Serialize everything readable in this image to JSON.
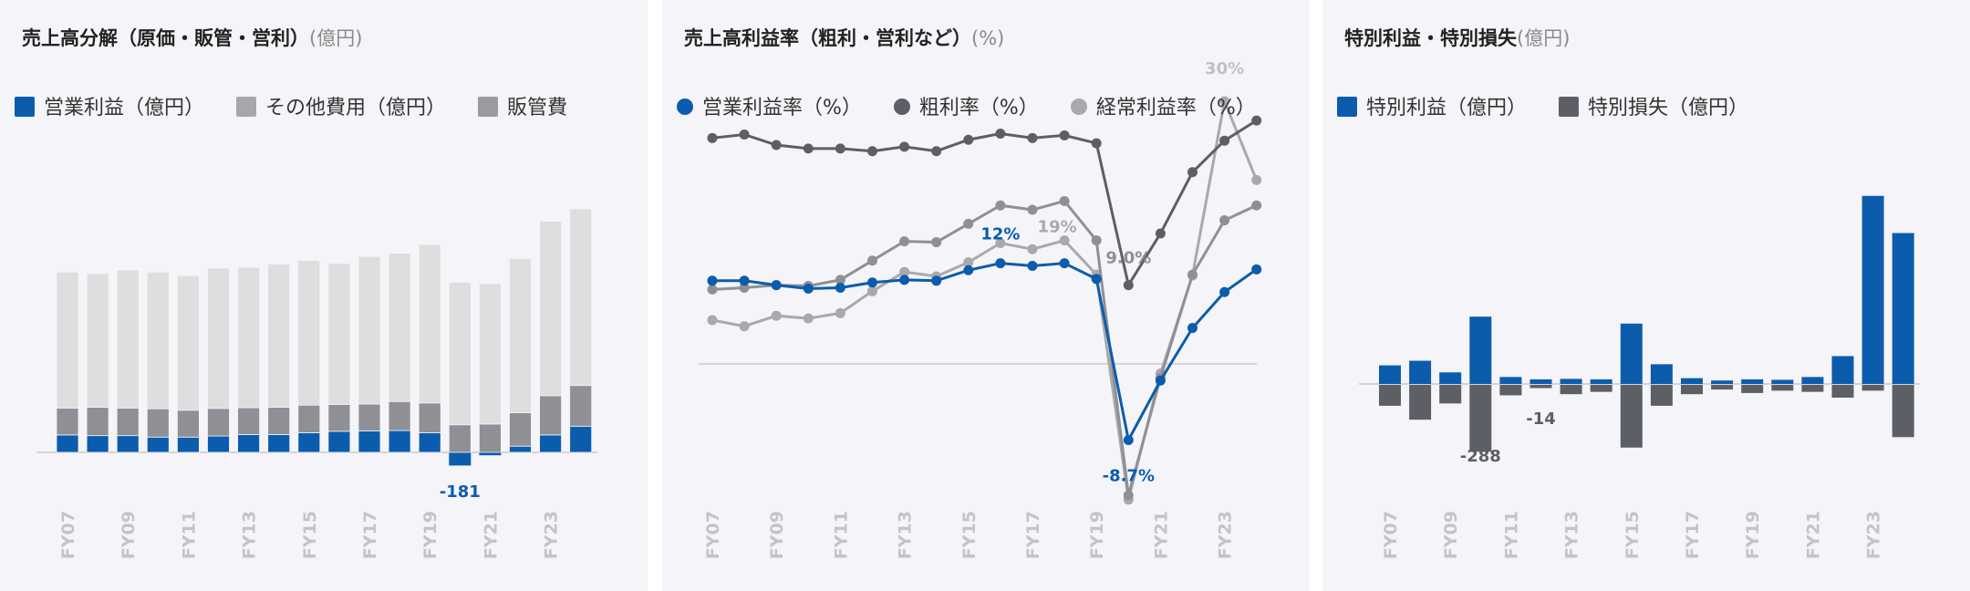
{
  "panels": [
    {
      "title": "売上高分解（原価・販管・営利）",
      "unit": "(億円)",
      "legend": [
        {
          "name": "営業利益（億円）",
          "color": "#0b5cad"
        },
        {
          "name": "その他費用（億円）",
          "color": "#a7a7a9"
        },
        {
          "name": "販管費",
          "color": "#9a9ba1"
        }
      ]
    },
    {
      "title": "売上高利益率（粗利・営利など）",
      "unit": "(%)",
      "legend": [
        {
          "name": "営業利益率（%）",
          "color": "#0b5cad"
        },
        {
          "name": "粗利率（%）",
          "color": "#5c5f66"
        },
        {
          "name": "経常利益率（%）",
          "color": "#a9a9ab"
        }
      ]
    },
    {
      "title": "特別利益・特別損失",
      "unit": "(億円)",
      "legend": [
        {
          "name": "特別利益（億円）",
          "color": "#0b5cad"
        },
        {
          "name": "特別損失（億円）",
          "color": "#5c5f66"
        }
      ]
    }
  ],
  "chart_data": [
    {
      "type": "bar",
      "stacked": true,
      "title": "売上高分解（原価・販管・営利）",
      "categories": [
        "FY07",
        "FY08",
        "FY09",
        "FY10",
        "FY11",
        "FY12",
        "FY13",
        "FY14",
        "FY15",
        "FY16",
        "FY17",
        "FY18",
        "FY19",
        "FY20",
        "FY21",
        "FY22",
        "FY23",
        "FY24"
      ],
      "tick_labels": [
        "FY07",
        "FY09",
        "FY11",
        "FY13",
        "FY15",
        "FY17",
        "FY19",
        "FY21",
        "FY23"
      ],
      "series": [
        {
          "name": "営業利益（億円）",
          "color": "#0b5cad",
          "values": [
            240,
            230,
            230,
            210,
            210,
            225,
            245,
            245,
            270,
            290,
            295,
            300,
            270,
            -181,
            -40,
            85,
            240,
            360
          ]
        },
        {
          "name": "販管費",
          "color": "#8f9096",
          "values": [
            370,
            390,
            380,
            390,
            370,
            380,
            370,
            375,
            380,
            370,
            370,
            400,
            410,
            380,
            390,
            460,
            540,
            560
          ]
        },
        {
          "name": "その他費用（億円）",
          "color": "#dededf",
          "values": [
            1870,
            1840,
            1900,
            1880,
            1850,
            1930,
            1930,
            1970,
            1990,
            1940,
            2030,
            2040,
            2180,
            1960,
            1930,
            2120,
            2400,
            2430
          ]
        }
      ],
      "annotations": [
        {
          "label": "-181",
          "category": "FY20"
        }
      ],
      "ylim": [
        -400,
        3600
      ]
    },
    {
      "type": "line",
      "title": "売上高利益率（粗利・営利など）",
      "categories": [
        "FY07",
        "FY08",
        "FY09",
        "FY10",
        "FY11",
        "FY12",
        "FY13",
        "FY14",
        "FY15",
        "FY16",
        "FY17",
        "FY18",
        "FY19",
        "FY20",
        "FY21",
        "FY22",
        "FY23",
        "FY24"
      ],
      "tick_labels": [
        "FY07",
        "FY09",
        "FY11",
        "FY13",
        "FY15",
        "FY17",
        "FY19",
        "FY21",
        "FY23"
      ],
      "series": [
        {
          "name": "粗利率（%）",
          "color": "#5c5f66",
          "values": [
            25.8,
            26.2,
            25.0,
            24.6,
            24.6,
            24.3,
            24.8,
            24.3,
            25.6,
            26.3,
            25.8,
            26.1,
            25.2,
            9.0,
            14.9,
            21.9,
            25.5,
            27.8
          ]
        },
        {
          "name": "営業利益率（%）",
          "color": "#0b5cad",
          "values": [
            9.5,
            9.5,
            9.0,
            8.6,
            8.7,
            9.3,
            9.6,
            9.5,
            10.7,
            11.5,
            11.2,
            11.5,
            9.7,
            -8.7,
            -1.9,
            4.1,
            8.2,
            10.8
          ]
        },
        {
          "name": "経常利益率（%）",
          "color": "#a9a9ab",
          "values": [
            5.0,
            4.3,
            5.5,
            5.2,
            5.8,
            8.3,
            10.5,
            10.0,
            11.6,
            13.8,
            13.1,
            14.1,
            10.2,
            -15.5,
            -1.1,
            10.1,
            30.0,
            21.0
          ]
        },
        {
          "name": "",
          "color": "#8f9096",
          "values": [
            8.5,
            8.7,
            9.0,
            8.9,
            9.6,
            11.8,
            14.0,
            13.9,
            16.0,
            18.1,
            17.6,
            18.6,
            14.1,
            -15.0,
            -1.6,
            10.2,
            16.4,
            18.1
          ]
        }
      ],
      "annotations": [
        {
          "label": "12%",
          "category": "FY16"
        },
        {
          "label": "19%",
          "category": "FY18"
        },
        {
          "label": "9.0%",
          "category": "FY20"
        },
        {
          "label": "-8.7%",
          "category": "FY20"
        },
        {
          "label": "30%",
          "category": "FY23"
        }
      ],
      "baseline": 0,
      "ylim": [
        -18,
        33
      ]
    },
    {
      "type": "bar",
      "title": "特別利益・特別損失",
      "categories": [
        "FY07",
        "FY08",
        "FY09",
        "FY10",
        "FY11",
        "FY12",
        "FY13",
        "FY14",
        "FY15",
        "FY16",
        "FY17",
        "FY18",
        "FY19",
        "FY20",
        "FY21",
        "FY22",
        "FY23",
        "FY24"
      ],
      "tick_labels": [
        "FY07",
        "FY09",
        "FY11",
        "FY13",
        "FY15",
        "FY17",
        "FY19",
        "FY21",
        "FY23"
      ],
      "series": [
        {
          "name": "特別利益（億円）",
          "color": "#0b5cad",
          "values": [
            80,
            100,
            50,
            290,
            30,
            20,
            22,
            20,
            260,
            85,
            25,
            15,
            20,
            18,
            30,
            120,
            810,
            650
          ]
        },
        {
          "name": "特別損失（億円）",
          "color": "#5c5f66",
          "values": [
            -90,
            -150,
            -80,
            -288,
            -45,
            -14,
            -40,
            -30,
            -270,
            -90,
            -40,
            -20,
            -35,
            -25,
            -30,
            -55,
            -25,
            -225
          ]
        }
      ],
      "annotations": [
        {
          "label": "-288",
          "category": "FY10"
        },
        {
          "label": "-14",
          "category": "FY12"
        }
      ],
      "ylim": [
        -400,
        900
      ]
    }
  ]
}
